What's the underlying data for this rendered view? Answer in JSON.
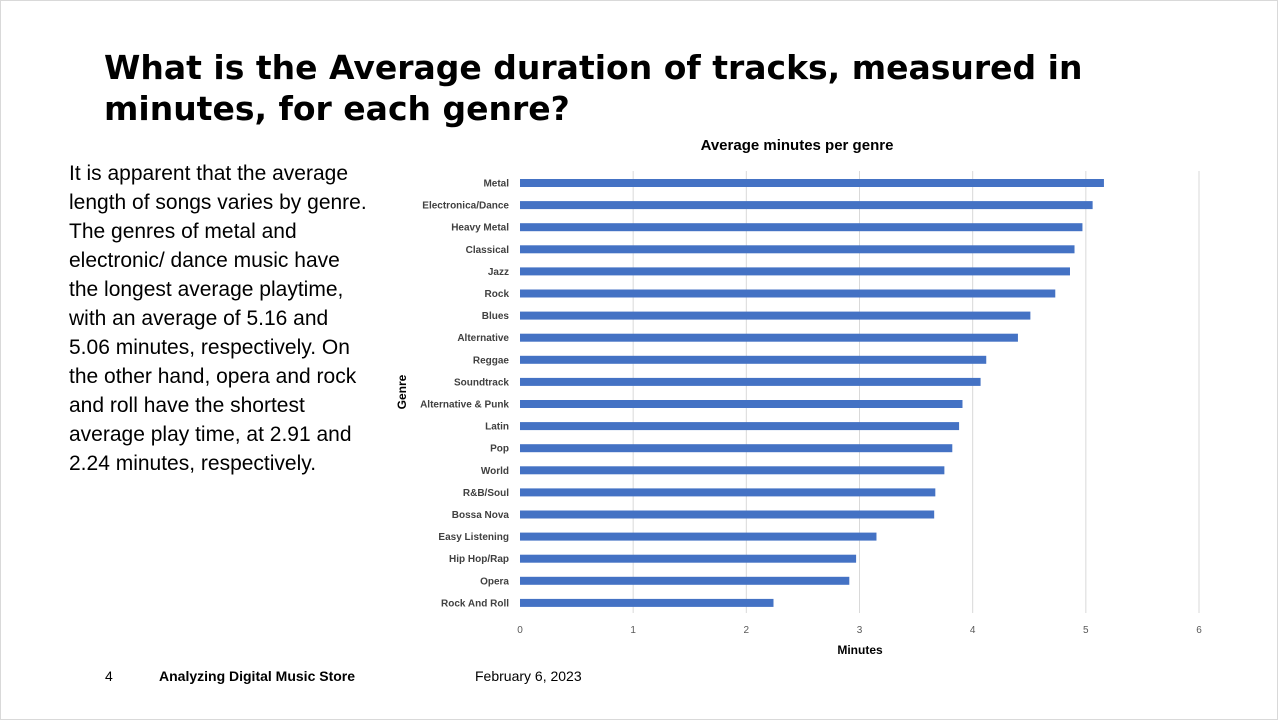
{
  "slide": {
    "title": "What is the Average duration of tracks, measured in minutes, for each genre?",
    "body": "It is apparent that the average length of songs varies by genre. The genres of metal and electronic/ dance music have the longest average playtime, with an average of 5.16 and 5.06 minutes, respectively. On the other hand, opera and rock and roll have the shortest average play time, at 2.91 and 2.24 minutes, respectively.",
    "footer": {
      "page_number": "4",
      "presentation_title": "Analyzing Digital Music Store",
      "date": "February 6, 2023"
    }
  },
  "chart_data": {
    "type": "bar",
    "orientation": "horizontal",
    "title": "Average minutes per genre",
    "xlabel": "Minutes",
    "ylabel": "Genre",
    "categories": [
      "Metal",
      "Electronica/Dance",
      "Heavy Metal",
      "Classical",
      "Jazz",
      "Rock",
      "Blues",
      "Alternative",
      "Reggae",
      "Soundtrack",
      "Alternative & Punk",
      "Latin",
      "Pop",
      "World",
      "R&B/Soul",
      "Bossa Nova",
      "Easy Listening",
      "Hip Hop/Rap",
      "Opera",
      "Rock And Roll"
    ],
    "values": [
      5.16,
      5.06,
      4.97,
      4.9,
      4.86,
      4.73,
      4.51,
      4.4,
      4.12,
      4.07,
      3.91,
      3.88,
      3.82,
      3.75,
      3.67,
      3.66,
      3.15,
      2.97,
      2.91,
      2.24
    ],
    "xlim": [
      0,
      6
    ],
    "xticks": [
      "0",
      "1",
      "2",
      "3",
      "4",
      "5",
      "6"
    ],
    "grid": true,
    "bar_color": "#4472C4",
    "grid_color": "#d9d9d9"
  }
}
